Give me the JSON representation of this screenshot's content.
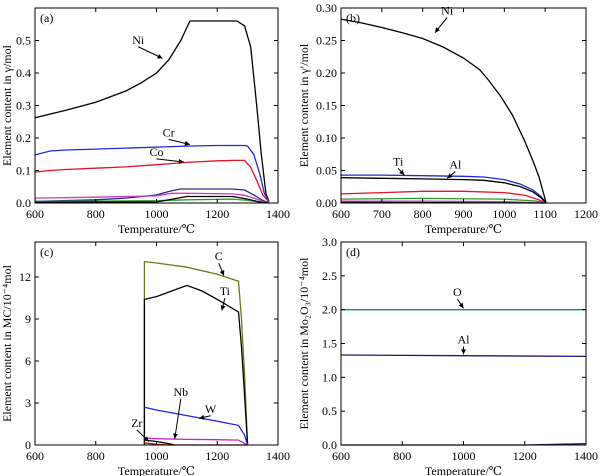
{
  "chart_data": [
    {
      "panel": "(a)",
      "type": "line",
      "xlabel": "Temperature/℃",
      "ylabel": "Element content in γ/mol",
      "xlim": [
        600,
        1400
      ],
      "ylim": [
        0,
        0.6
      ],
      "xticks": [
        600,
        800,
        1000,
        1200,
        1400
      ],
      "yticks": [
        0,
        0.1,
        0.2,
        0.3,
        0.4,
        0.5
      ],
      "series": [
        {
          "name": "Ni",
          "color": "#000000",
          "points": [
            [
              600,
              0.262
            ],
            [
              700,
              0.285
            ],
            [
              800,
              0.31
            ],
            [
              900,
              0.345
            ],
            [
              950,
              0.37
            ],
            [
              1000,
              0.4
            ],
            [
              1040,
              0.44
            ],
            [
              1080,
              0.5
            ],
            [
              1110,
              0.56
            ],
            [
              1200,
              0.56
            ],
            [
              1265,
              0.56
            ],
            [
              1290,
              0.545
            ],
            [
              1310,
              0.48
            ],
            [
              1330,
              0.3
            ],
            [
              1345,
              0.15
            ],
            [
              1360,
              0.03
            ],
            [
              1370,
              0.005
            ]
          ]
        },
        {
          "name": "Cr",
          "color": "#1f2ad8",
          "points": [
            [
              600,
              0.148
            ],
            [
              650,
              0.16
            ],
            [
              700,
              0.163
            ],
            [
              800,
              0.166
            ],
            [
              900,
              0.169
            ],
            [
              1000,
              0.172
            ],
            [
              1100,
              0.175
            ],
            [
              1200,
              0.177
            ],
            [
              1290,
              0.177
            ],
            [
              1300,
              0.175
            ],
            [
              1320,
              0.15
            ],
            [
              1340,
              0.09
            ],
            [
              1355,
              0.03
            ],
            [
              1370,
              0.004
            ]
          ]
        },
        {
          "name": "Co",
          "color": "#e0142a",
          "points": [
            [
              600,
              0.095
            ],
            [
              650,
              0.1
            ],
            [
              700,
              0.103
            ],
            [
              800,
              0.107
            ],
            [
              900,
              0.111
            ],
            [
              1000,
              0.118
            ],
            [
              1100,
              0.125
            ],
            [
              1200,
              0.13
            ],
            [
              1260,
              0.131
            ],
            [
              1290,
              0.131
            ],
            [
              1310,
              0.11
            ],
            [
              1330,
              0.07
            ],
            [
              1350,
              0.025
            ],
            [
              1370,
              0.003
            ]
          ]
        },
        {
          "color": "#2a2a8a",
          "points": [
            [
              600,
              0.005
            ],
            [
              800,
              0.01
            ],
            [
              900,
              0.015
            ],
            [
              1000,
              0.025
            ],
            [
              1050,
              0.038
            ],
            [
              1080,
              0.043
            ],
            [
              1250,
              0.043
            ],
            [
              1290,
              0.04
            ],
            [
              1320,
              0.025
            ],
            [
              1350,
              0.008
            ],
            [
              1370,
              0.001
            ]
          ]
        },
        {
          "color": "#c83cc8",
          "points": [
            [
              600,
              0.015
            ],
            [
              800,
              0.018
            ],
            [
              1000,
              0.022
            ],
            [
              1050,
              0.03
            ],
            [
              1100,
              0.03
            ],
            [
              1250,
              0.028
            ],
            [
              1290,
              0.024
            ],
            [
              1320,
              0.015
            ],
            [
              1350,
              0.005
            ],
            [
              1370,
              0.001
            ]
          ]
        },
        {
          "color": "#2a9a2a",
          "points": [
            [
              600,
              0.005
            ],
            [
              800,
              0.006
            ],
            [
              1000,
              0.007
            ],
            [
              1100,
              0.01
            ],
            [
              1250,
              0.012
            ],
            [
              1300,
              0.008
            ],
            [
              1340,
              0.003
            ],
            [
              1370,
              0.0
            ]
          ]
        },
        {
          "color": "#000000",
          "points": [
            [
              600,
              0.002
            ],
            [
              1000,
              0.003
            ],
            [
              1100,
              0.02
            ],
            [
              1250,
              0.02
            ],
            [
              1300,
              0.012
            ],
            [
              1340,
              0.003
            ],
            [
              1370,
              0.0
            ]
          ]
        }
      ],
      "annotations": [
        {
          "text": "Ni",
          "x": 940,
          "y": 0.49,
          "ax": 1020,
          "ay": 0.445
        },
        {
          "text": "Cr",
          "x": 1040,
          "y": 0.205,
          "ax": 1110,
          "ay": 0.18
        },
        {
          "text": "Co",
          "x": 1000,
          "y": 0.145,
          "ax": 1090,
          "ay": 0.126
        }
      ]
    },
    {
      "panel": "(b)",
      "type": "line",
      "xlabel": "Temperature/℃",
      "ylabel": "Element content in γ′/mol",
      "xlim": [
        600,
        1200
      ],
      "ylim": [
        0,
        0.3
      ],
      "xticks": [
        600,
        700,
        800,
        900,
        1000,
        1100,
        1200
      ],
      "yticks": [
        0,
        0.05,
        0.1,
        0.15,
        0.2,
        0.25,
        0.3
      ],
      "series": [
        {
          "name": "Ni",
          "color": "#000000",
          "points": [
            [
              600,
              0.283
            ],
            [
              650,
              0.277
            ],
            [
              700,
              0.27
            ],
            [
              750,
              0.262
            ],
            [
              800,
              0.253
            ],
            [
              850,
              0.24
            ],
            [
              900,
              0.223
            ],
            [
              940,
              0.205
            ],
            [
              960,
              0.19
            ],
            [
              990,
              0.165
            ],
            [
              1020,
              0.135
            ],
            [
              1050,
              0.095
            ],
            [
              1070,
              0.065
            ],
            [
              1085,
              0.04
            ],
            [
              1098,
              0.01
            ],
            [
              1102,
              0.0
            ]
          ]
        },
        {
          "name": "Ti",
          "color": "#1f2ad8",
          "points": [
            [
              600,
              0.043
            ],
            [
              700,
              0.043
            ],
            [
              800,
              0.042
            ],
            [
              900,
              0.041
            ],
            [
              950,
              0.04
            ],
            [
              1000,
              0.036
            ],
            [
              1040,
              0.029
            ],
            [
              1070,
              0.02
            ],
            [
              1090,
              0.01
            ],
            [
              1102,
              0.0
            ]
          ]
        },
        {
          "name": "Al",
          "color": "#000000",
          "points": [
            [
              600,
              0.039
            ],
            [
              700,
              0.038
            ],
            [
              800,
              0.037
            ],
            [
              900,
              0.036
            ],
            [
              950,
              0.035
            ],
            [
              1000,
              0.031
            ],
            [
              1040,
              0.025
            ],
            [
              1070,
              0.017
            ],
            [
              1090,
              0.008
            ],
            [
              1102,
              0.0
            ]
          ]
        },
        {
          "color": "#e0142a",
          "points": [
            [
              600,
              0.014
            ],
            [
              700,
              0.016
            ],
            [
              800,
              0.018
            ],
            [
              900,
              0.018
            ],
            [
              1000,
              0.016
            ],
            [
              1050,
              0.012
            ],
            [
              1085,
              0.005
            ],
            [
              1102,
              0.0
            ]
          ]
        },
        {
          "color": "#2a9a2a",
          "points": [
            [
              600,
              0.006
            ],
            [
              800,
              0.007
            ],
            [
              1000,
              0.006
            ],
            [
              1080,
              0.003
            ],
            [
              1102,
              0.0
            ]
          ]
        },
        {
          "color": "#c83cc8",
          "points": [
            [
              600,
              0.003
            ],
            [
              800,
              0.003
            ],
            [
              1000,
              0.002
            ],
            [
              1102,
              0.0
            ]
          ]
        },
        {
          "color": "#000000",
          "points": [
            [
              600,
              0.001
            ],
            [
              1102,
              0.0
            ]
          ]
        }
      ],
      "annotations": [
        {
          "text": "Ni",
          "x": 860,
          "y": 0.29,
          "ax": 830,
          "ay": 0.262
        },
        {
          "text": "Ti",
          "x": 740,
          "y": 0.058,
          "ax": 755,
          "ay": 0.043
        },
        {
          "text": "Al",
          "x": 880,
          "y": 0.053,
          "ax": 860,
          "ay": 0.038
        }
      ]
    },
    {
      "panel": "(c)",
      "type": "line",
      "xlabel": "Temperature/℃",
      "ylabel": "Element content in MC/10⁻⁴mol",
      "xlim": [
        600,
        1400
      ],
      "ylim": [
        0,
        14.5
      ],
      "xticks": [
        600,
        800,
        1000,
        1200,
        1400
      ],
      "yticks": [
        0,
        3,
        6,
        9,
        12
      ],
      "series": [
        {
          "name": "C",
          "color": "#6a7a1a",
          "points": [
            [
              960,
              0.0
            ],
            [
              960,
              13.1
            ],
            [
              1000,
              13.0
            ],
            [
              1100,
              12.7
            ],
            [
              1200,
              12.2
            ],
            [
              1270,
              11.7
            ],
            [
              1280,
              9.0
            ],
            [
              1290,
              5.0
            ],
            [
              1300,
              0.0
            ]
          ]
        },
        {
          "name": "Ti",
          "color": "#000000",
          "points": [
            [
              960,
              0.0
            ],
            [
              960,
              10.4
            ],
            [
              1000,
              10.6
            ],
            [
              1050,
              11.0
            ],
            [
              1100,
              11.4
            ],
            [
              1150,
              11.0
            ],
            [
              1200,
              10.4
            ],
            [
              1270,
              9.5
            ],
            [
              1280,
              7.0
            ],
            [
              1290,
              3.5
            ],
            [
              1300,
              0.0
            ]
          ]
        },
        {
          "name": "W",
          "color": "#1f2ad8",
          "points": [
            [
              960,
              2.7
            ],
            [
              1000,
              2.5
            ],
            [
              1100,
              2.1
            ],
            [
              1200,
              1.7
            ],
            [
              1270,
              1.4
            ],
            [
              1290,
              0.7
            ],
            [
              1300,
              0.0
            ]
          ]
        },
        {
          "name": "Nb",
          "color": "#d020c8",
          "points": [
            [
              960,
              0.5
            ],
            [
              1000,
              0.45
            ],
            [
              1100,
              0.4
            ],
            [
              1200,
              0.38
            ],
            [
              1270,
              0.35
            ],
            [
              1300,
              0.0
            ]
          ]
        },
        {
          "name": "Zr",
          "color": "#000000",
          "points": [
            [
              960,
              0.35
            ],
            [
              1000,
              0.25
            ],
            [
              1040,
              0.1
            ],
            [
              1060,
              0.0
            ]
          ]
        },
        {
          "color": "#a01010",
          "points": [
            [
              960,
              0.15
            ],
            [
              1000,
              0.05
            ],
            [
              1040,
              0.0
            ],
            [
              1300,
              0.0
            ]
          ]
        }
      ],
      "annotations": [
        {
          "text": "C",
          "x": 1205,
          "y": 13.2,
          "ax": 1222,
          "ay": 12.1
        },
        {
          "text": "Ti",
          "x": 1225,
          "y": 10.7,
          "ax": 1215,
          "ay": 9.6
        },
        {
          "text": "Nb",
          "x": 1080,
          "y": 3.5,
          "ax": 1060,
          "ay": 0.45
        },
        {
          "text": "W",
          "x": 1178,
          "y": 2.3,
          "ax": 1140,
          "ay": 1.9
        },
        {
          "text": "Zr",
          "x": 935,
          "y": 1.3,
          "ax": 975,
          "ay": 0.25
        }
      ]
    },
    {
      "panel": "(d)",
      "type": "line",
      "xlabel": "Temperature/℃",
      "ylabel": "Element content in Mo₂O₃/10⁻⁴mol",
      "xlim": [
        600,
        1400
      ],
      "ylim": [
        0,
        3.0
      ],
      "xticks": [
        600,
        800,
        1000,
        1200,
        1400
      ],
      "yticks": [
        0,
        0.5,
        1.0,
        1.5,
        2.0,
        2.5,
        3.0
      ],
      "series": [
        {
          "name": "O",
          "color": "#1a8a8a",
          "points": [
            [
              600,
              2.0
            ],
            [
              1400,
              2.0
            ]
          ]
        },
        {
          "name": "Al",
          "color": "#1a1a7a",
          "points": [
            [
              600,
              1.33
            ],
            [
              1000,
              1.32
            ],
            [
              1400,
              1.31
            ]
          ]
        },
        {
          "color": "#1a1a7a",
          "points": [
            [
              600,
              0.0
            ],
            [
              1200,
              0.0
            ],
            [
              1400,
              0.02
            ]
          ]
        }
      ],
      "annotations": [
        {
          "text": "O",
          "x": 980,
          "y": 2.2,
          "ax": 1000,
          "ay": 2.02
        },
        {
          "text": "Al",
          "x": 1000,
          "y": 1.5,
          "ax": 1000,
          "ay": 1.34
        }
      ]
    }
  ]
}
